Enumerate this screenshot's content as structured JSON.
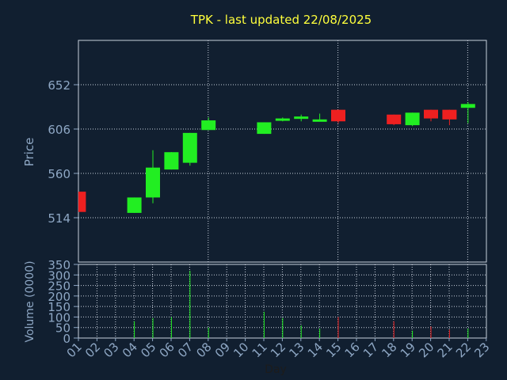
{
  "colors": {
    "background": "#111f30",
    "title": "#ffff3c",
    "axis_text": "#8ea7c4",
    "up": "#22ee22",
    "down": "#ee2020"
  },
  "chart_data": [
    {
      "type": "candlestick",
      "title": "TPK - last updated 22/08/2025",
      "ylabel": "Price",
      "xlabel": "",
      "ylim": [
        468,
        698
      ],
      "yticks": [
        514,
        560,
        606,
        652
      ],
      "grid": true,
      "categories": [
        "01",
        "02",
        "03",
        "04",
        "05",
        "06",
        "07",
        "08",
        "09",
        "10",
        "11",
        "12",
        "13",
        "14",
        "15",
        "16",
        "17",
        "18",
        "19",
        "20",
        "21",
        "22",
        "23"
      ],
      "candles": [
        {
          "day": "01",
          "open": 541,
          "close": 520,
          "high": 541,
          "low": 520
        },
        {
          "day": "04",
          "open": 519,
          "close": 535,
          "high": 535,
          "low": 519
        },
        {
          "day": "05",
          "open": 535,
          "close": 566,
          "high": 584,
          "low": 529
        },
        {
          "day": "06",
          "open": 564,
          "close": 582,
          "high": 582,
          "low": 564
        },
        {
          "day": "07",
          "open": 571,
          "close": 602,
          "high": 602,
          "low": 568
        },
        {
          "day": "08",
          "open": 605,
          "close": 615,
          "high": 618,
          "low": 605
        },
        {
          "day": "11",
          "open": 601,
          "close": 613,
          "high": 613,
          "low": 601
        },
        {
          "day": "12",
          "open": 615,
          "close": 617,
          "high": 618,
          "low": 614
        },
        {
          "day": "13",
          "open": 617,
          "close": 619,
          "high": 621,
          "low": 614
        },
        {
          "day": "14",
          "open": 614,
          "close": 616,
          "high": 622,
          "low": 614
        },
        {
          "day": "15",
          "open": 626,
          "close": 614,
          "high": 626,
          "low": 612
        },
        {
          "day": "18",
          "open": 621,
          "close": 611,
          "high": 621,
          "low": 610
        },
        {
          "day": "19",
          "open": 610,
          "close": 623,
          "high": 623,
          "low": 609
        },
        {
          "day": "20",
          "open": 626,
          "close": 617,
          "high": 626,
          "low": 614
        },
        {
          "day": "21",
          "open": 626,
          "close": 616,
          "high": 626,
          "low": 610
        },
        {
          "day": "22",
          "open": 628,
          "close": 632,
          "high": 634,
          "low": 612
        }
      ]
    },
    {
      "type": "bar",
      "ylabel": "Volume (0000)",
      "xlabel": "Day",
      "ylim": [
        0,
        350
      ],
      "yticks": [
        0,
        50,
        100,
        150,
        200,
        250,
        300,
        350
      ],
      "grid": true,
      "categories": [
        "01",
        "02",
        "03",
        "04",
        "05",
        "06",
        "07",
        "08",
        "09",
        "10",
        "11",
        "12",
        "13",
        "14",
        "15",
        "16",
        "17",
        "18",
        "19",
        "20",
        "21",
        "22",
        "23"
      ],
      "bars": [
        {
          "day": "01",
          "value": 0,
          "dir": "down"
        },
        {
          "day": "04",
          "value": 80,
          "dir": "up"
        },
        {
          "day": "05",
          "value": 95,
          "dir": "up"
        },
        {
          "day": "06",
          "value": 100,
          "dir": "up"
        },
        {
          "day": "07",
          "value": 320,
          "dir": "up"
        },
        {
          "day": "08",
          "value": 50,
          "dir": "up"
        },
        {
          "day": "11",
          "value": 125,
          "dir": "up"
        },
        {
          "day": "12",
          "value": 95,
          "dir": "up"
        },
        {
          "day": "13",
          "value": 60,
          "dir": "up"
        },
        {
          "day": "14",
          "value": 45,
          "dir": "up"
        },
        {
          "day": "15",
          "value": 100,
          "dir": "down"
        },
        {
          "day": "18",
          "value": 80,
          "dir": "down"
        },
        {
          "day": "19",
          "value": 35,
          "dir": "up"
        },
        {
          "day": "20",
          "value": 55,
          "dir": "down"
        },
        {
          "day": "21",
          "value": 40,
          "dir": "down"
        },
        {
          "day": "22",
          "value": 45,
          "dir": "up"
        }
      ]
    }
  ]
}
